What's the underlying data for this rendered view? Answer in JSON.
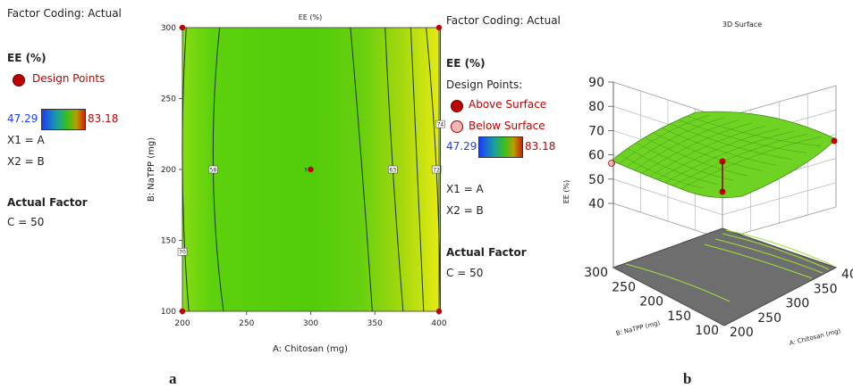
{
  "left_legend": {
    "factor_coding": "Factor Coding: Actual",
    "response": "EE (%)",
    "design_points": "Design Points",
    "range_min": "47.29",
    "range_max": "83.18",
    "x1": "X1 = A",
    "x2": "X2 = B",
    "actual_factor": "Actual Factor",
    "c": "C = 50"
  },
  "right_legend": {
    "factor_coding": "Factor Coding: Actual",
    "response": "EE (%)",
    "design_points": "Design Points:",
    "above": "Above Surface",
    "below": "Below Surface",
    "range_min": "47.29",
    "range_max": "83.18",
    "x1": "X1 = A",
    "x2": "X2 = B",
    "actual_factor": "Actual Factor",
    "c": "C = 50"
  },
  "panel_labels": {
    "a": "a",
    "b": "b"
  },
  "colors": {
    "low": "#1a3cff",
    "high": "#d02000",
    "point": "#c00000",
    "point_below": "#f4b8b8",
    "surface_green": "#6fd323",
    "floor": "#666666"
  },
  "chart_data": [
    {
      "type": "heatmap",
      "subtype": "contour",
      "title": "EE (%)",
      "xlabel": "A: Chitosan (mg)",
      "ylabel": "B: NaTPP (mg)",
      "xlim": [
        200,
        400
      ],
      "ylim": [
        100,
        300
      ],
      "x_ticks": [
        "200",
        "250",
        "300",
        "350",
        "400"
      ],
      "y_ticks": [
        "100",
        "150",
        "200",
        "250",
        "300"
      ],
      "contour_levels": [
        {
          "value": 70,
          "label": "70",
          "x_at_y_low": 205,
          "x_at_y_mid": 200,
          "x_at_y_high": 203
        },
        {
          "value": 58,
          "label": "58",
          "x_at_y_low": 232,
          "x_at_y_mid": 224,
          "x_at_y_high": 229
        },
        {
          "value": 58,
          "label": "",
          "x_at_y_low": 348,
          "x_at_y_mid": 340,
          "x_at_y_high": 331
        },
        {
          "value": 63,
          "label": "63",
          "x_at_y_low": 372,
          "x_at_y_mid": 364,
          "x_at_y_high": 358
        },
        {
          "value": 68,
          "label": "",
          "x_at_y_low": 388,
          "x_at_y_mid": 383,
          "x_at_y_high": 378
        },
        {
          "value": 72,
          "label": "72",
          "x_at_y_low": 401,
          "x_at_y_mid": 398,
          "x_at_y_high": 390
        },
        {
          "value": 74,
          "label": "74",
          "x_at_y_low": 401,
          "x_at_y_mid": 401,
          "x_at_y_high": 401
        }
      ],
      "design_points": [
        {
          "x": 200,
          "y": 100
        },
        {
          "x": 200,
          "y": 300
        },
        {
          "x": 400,
          "y": 100
        },
        {
          "x": 400,
          "y": 300
        },
        {
          "x": 300,
          "y": 200,
          "label": "5"
        }
      ]
    },
    {
      "type": "surface",
      "title": "3D Surface",
      "zlabel": "EE (%)",
      "xlabel": "A: Chitosan (mg)",
      "ylabel": "B: NaTPP (mg)",
      "z_ticks": [
        "40",
        "50",
        "60",
        "70",
        "80",
        "90"
      ],
      "x_ticks": [
        "200",
        "250",
        "300",
        "350",
        "400"
      ],
      "y_ticks": [
        "100",
        "150",
        "200",
        "250",
        "300"
      ],
      "zlim": [
        40,
        90
      ]
    }
  ]
}
